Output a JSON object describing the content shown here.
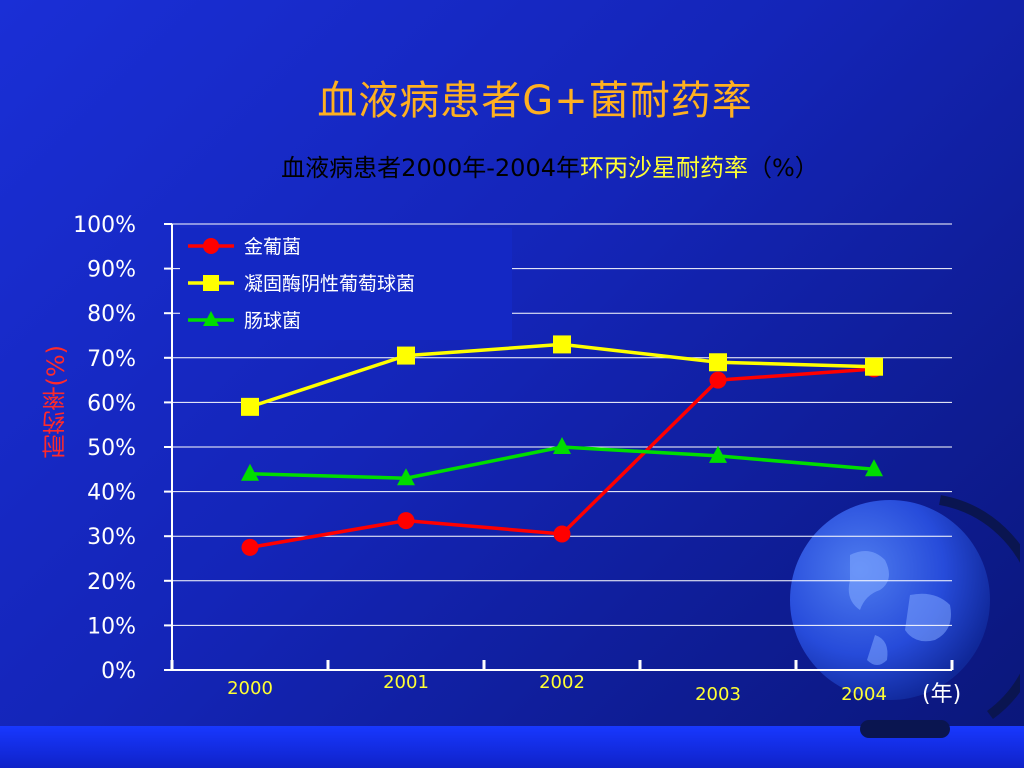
{
  "slide": {
    "title": "血液病患者G+菌耐药率",
    "subtitle_prefix": "血液病患者2000年-2004年",
    "subtitle_highlight": "环丙沙星耐药率",
    "subtitle_suffix": "（%）",
    "ylabel": "耐药率(%)",
    "x_unit": "(年)"
  },
  "colors": {
    "series1": "#ff0000",
    "series2": "#ffff00",
    "series3": "#00dd00",
    "grid": "#ffffff",
    "tick_x": "#ffff33"
  },
  "chart_data": {
    "type": "line",
    "categories": [
      "2000",
      "2001",
      "2002",
      "2003",
      "2004"
    ],
    "y_ticks": [
      "0%",
      "10%",
      "20%",
      "30%",
      "40%",
      "50%",
      "60%",
      "70%",
      "80%",
      "90%",
      "100%"
    ],
    "ylim": [
      0,
      100
    ],
    "grid": true,
    "legend_position": "top-left",
    "series": [
      {
        "name": "金葡菌",
        "values": [
          27.5,
          33.5,
          30.5,
          65,
          67.5
        ],
        "color": "#ff0000",
        "marker": "circle"
      },
      {
        "name": "凝固酶阴性葡萄球菌",
        "values": [
          59,
          70.5,
          73,
          69,
          68
        ],
        "color": "#ffff00",
        "marker": "square"
      },
      {
        "name": "肠球菌",
        "values": [
          44,
          43,
          50,
          48,
          45
        ],
        "color": "#00dd00",
        "marker": "triangle"
      }
    ]
  }
}
